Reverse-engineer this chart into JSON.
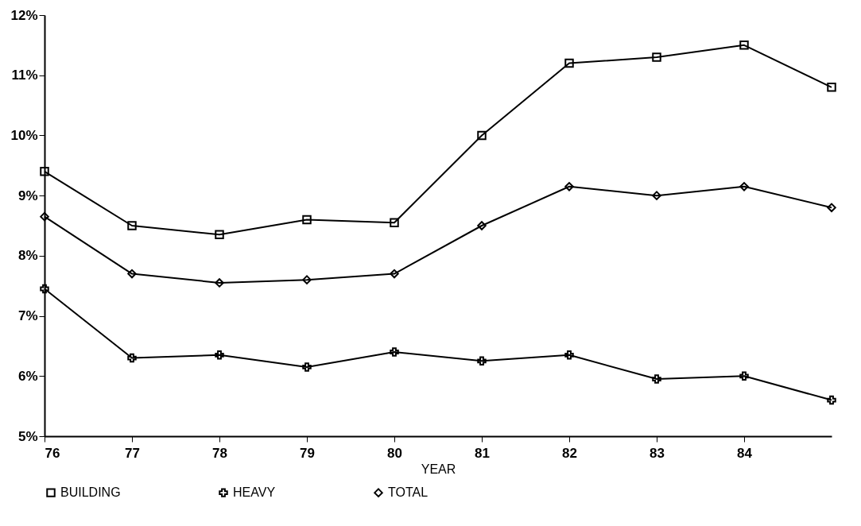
{
  "chart_data": {
    "type": "line",
    "xlabel": "YEAR",
    "x": [
      76,
      77,
      78,
      79,
      80,
      81,
      82,
      83,
      84,
      85
    ],
    "series": [
      {
        "name": "BUILDING",
        "color": "#000000",
        "marker": "square",
        "values": [
          9.4,
          8.5,
          8.35,
          8.6,
          8.55,
          10.0,
          11.2,
          11.3,
          11.5,
          10.8
        ]
      },
      {
        "name": "HEAVY",
        "color": "#000000",
        "marker": "cross",
        "values": [
          7.45,
          6.3,
          6.35,
          6.15,
          6.4,
          6.25,
          6.35,
          5.95,
          6.0,
          5.6
        ]
      },
      {
        "name": "TOTAL",
        "color": "#000000",
        "marker": "diamond",
        "values": [
          8.65,
          7.7,
          7.55,
          7.6,
          7.7,
          8.5,
          9.15,
          9.0,
          9.15,
          8.8
        ]
      }
    ],
    "xlim": [
      76,
      85
    ],
    "xticks": [
      76,
      77,
      78,
      79,
      80,
      81,
      82,
      83,
      84
    ],
    "ylim": [
      5,
      12
    ],
    "yticks": [
      {
        "value": 5,
        "label": "5%"
      },
      {
        "value": 6,
        "label": "6%"
      },
      {
        "value": 7,
        "label": "7%"
      },
      {
        "value": 8,
        "label": "8%"
      },
      {
        "value": 9,
        "label": "9%"
      },
      {
        "value": 10,
        "label": "10%"
      },
      {
        "value": 11,
        "label": "11%"
      },
      {
        "value": 12,
        "label": "12%"
      }
    ],
    "grid": false,
    "legend": "bottom",
    "line_style": "solid"
  }
}
